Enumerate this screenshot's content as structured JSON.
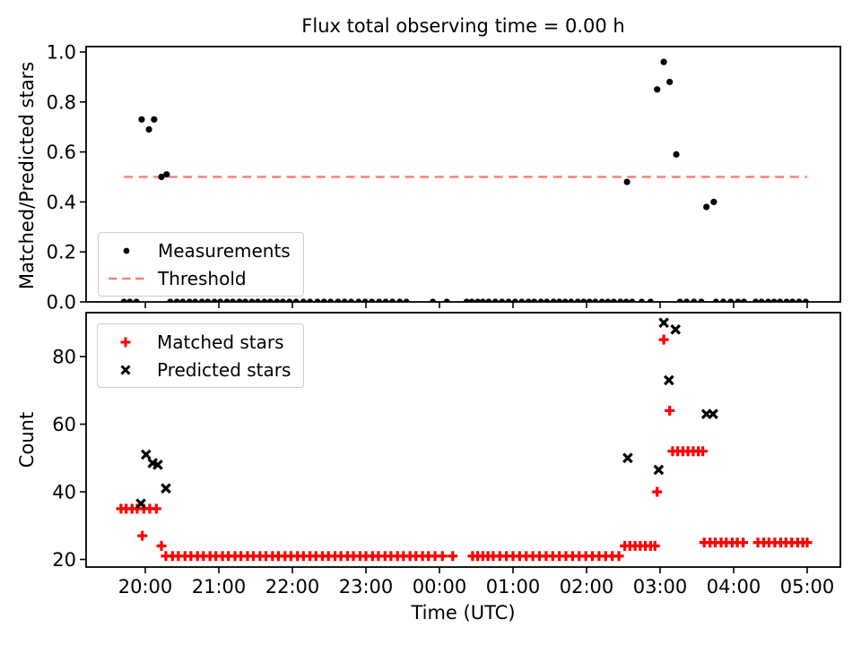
{
  "figure_title": "Flux total observing time = 0.00 h",
  "colors": {
    "measurements": "#000000",
    "threshold": "#ff7f7f",
    "matched": "#ff0000",
    "predicted": "#000000",
    "frame": "#000000",
    "legend_border": "#cccccc"
  },
  "x_unit_note": "decimal hours after 20:00 UTC",
  "chart_data": [
    {
      "type": "scatter",
      "title": "Flux total observing time = 0.00 h",
      "ylabel": "Matched/Predicted stars",
      "ylim": [
        0.0,
        1.02
      ],
      "yticks": [
        0.0,
        0.2,
        0.4,
        0.6,
        0.8,
        1.0
      ],
      "ytick_labels": [
        "0.0",
        "0.2",
        "0.4",
        "0.6",
        "0.8",
        "1.0"
      ],
      "xlim_hours": [
        -0.8,
        9.45
      ],
      "xticks_hours": [
        0,
        1,
        2,
        3,
        4,
        5,
        6,
        7,
        8,
        9
      ],
      "grid": false,
      "legend_position": "lower left",
      "legend": [
        {
          "label": "Measurements",
          "marker": "dot",
          "color": "#000000"
        },
        {
          "label": "Threshold",
          "marker": "dashed-line",
          "color": "#ff7f7f"
        }
      ],
      "threshold": {
        "value": 0.5,
        "t_start": -0.29,
        "t_end": 9.0,
        "color": "#ff7f7f"
      },
      "series": [
        {
          "name": "Measurements",
          "marker": "dot",
          "color": "#000000",
          "points": [
            [
              -0.05,
              0.73
            ],
            [
              0.05,
              0.69
            ],
            [
              0.12,
              0.73
            ],
            [
              0.22,
              0.5
            ],
            [
              0.29,
              0.51
            ],
            [
              6.55,
              0.48
            ],
            [
              6.96,
              0.85
            ],
            [
              7.05,
              0.96
            ],
            [
              7.13,
              0.88
            ],
            [
              7.22,
              0.59
            ],
            [
              7.63,
              0.38
            ],
            [
              7.73,
              0.4
            ],
            [
              -0.29,
              0
            ],
            [
              -0.21,
              0
            ],
            [
              -0.12,
              0
            ],
            [
              0.34,
              0
            ],
            [
              0.43,
              0
            ],
            [
              0.51,
              0
            ],
            [
              0.6,
              0
            ],
            [
              0.68,
              0
            ],
            [
              0.77,
              0
            ],
            [
              0.85,
              0
            ],
            [
              0.94,
              0
            ],
            [
              1.02,
              0
            ],
            [
              1.11,
              0
            ],
            [
              1.19,
              0
            ],
            [
              1.28,
              0
            ],
            [
              1.36,
              0
            ],
            [
              1.45,
              0
            ],
            [
              1.53,
              0
            ],
            [
              1.62,
              0
            ],
            [
              1.7,
              0
            ],
            [
              1.79,
              0
            ],
            [
              1.87,
              0
            ],
            [
              1.96,
              0
            ],
            [
              2.05,
              0
            ],
            [
              2.15,
              0
            ],
            [
              2.24,
              0
            ],
            [
              2.34,
              0
            ],
            [
              2.43,
              0
            ],
            [
              2.52,
              0
            ],
            [
              2.62,
              0
            ],
            [
              2.71,
              0
            ],
            [
              2.8,
              0
            ],
            [
              2.9,
              0
            ],
            [
              2.99,
              0
            ],
            [
              3.08,
              0
            ],
            [
              3.18,
              0
            ],
            [
              3.27,
              0
            ],
            [
              3.36,
              0
            ],
            [
              3.46,
              0
            ],
            [
              3.55,
              0
            ],
            [
              3.91,
              0
            ],
            [
              4.1,
              0
            ],
            [
              4.37,
              0
            ],
            [
              4.44,
              0
            ],
            [
              4.52,
              0
            ],
            [
              4.59,
              0
            ],
            [
              4.67,
              0
            ],
            [
              4.76,
              0
            ],
            [
              4.85,
              0
            ],
            [
              4.94,
              0
            ],
            [
              5.03,
              0
            ],
            [
              5.12,
              0
            ],
            [
              5.21,
              0
            ],
            [
              5.29,
              0
            ],
            [
              5.38,
              0
            ],
            [
              5.46,
              0
            ],
            [
              5.55,
              0
            ],
            [
              5.63,
              0
            ],
            [
              5.71,
              0
            ],
            [
              5.79,
              0
            ],
            [
              5.88,
              0
            ],
            [
              5.96,
              0
            ],
            [
              6.04,
              0
            ],
            [
              6.12,
              0
            ],
            [
              6.21,
              0
            ],
            [
              6.29,
              0
            ],
            [
              6.37,
              0
            ],
            [
              6.46,
              0
            ],
            [
              6.54,
              0
            ],
            [
              6.62,
              0
            ],
            [
              6.75,
              0
            ],
            [
              6.87,
              0
            ],
            [
              7.27,
              0
            ],
            [
              7.36,
              0
            ],
            [
              7.46,
              0
            ],
            [
              7.56,
              0
            ],
            [
              7.76,
              0
            ],
            [
              7.86,
              0
            ],
            [
              7.96,
              0
            ],
            [
              8.06,
              0
            ],
            [
              8.14,
              0
            ],
            [
              8.3,
              0
            ],
            [
              8.38,
              0
            ],
            [
              8.47,
              0
            ],
            [
              8.55,
              0
            ],
            [
              8.63,
              0
            ],
            [
              8.72,
              0
            ],
            [
              8.8,
              0
            ],
            [
              8.89,
              0
            ],
            [
              8.98,
              0
            ]
          ]
        }
      ]
    },
    {
      "type": "scatter",
      "xlabel": "Time (UTC)",
      "ylabel": "Count",
      "ylim": [
        15.5,
        92.3
      ],
      "yticks": [
        20,
        40,
        60,
        80
      ],
      "ytick_labels": [
        "20",
        "40",
        "60",
        "80"
      ],
      "xlim_hours": [
        -0.8,
        9.45
      ],
      "xticks_hours": [
        0,
        1,
        2,
        3,
        4,
        5,
        6,
        7,
        8,
        9
      ],
      "xtick_labels": [
        "20:00",
        "21:00",
        "22:00",
        "23:00",
        "00:00",
        "01:00",
        "02:00",
        "03:00",
        "04:00",
        "05:00"
      ],
      "grid": false,
      "legend_position": "upper left",
      "legend": [
        {
          "label": "Matched stars",
          "marker": "plus",
          "color": "#ff0000"
        },
        {
          "label": "Predicted stars",
          "marker": "cross",
          "color": "#000000"
        }
      ],
      "series": [
        {
          "name": "Matched stars",
          "marker": "plus",
          "color": "#ff0000",
          "points": [
            [
              -0.33,
              35
            ],
            [
              -0.26,
              35
            ],
            [
              -0.18,
              35
            ],
            [
              -0.11,
              35
            ],
            [
              -0.02,
              35
            ],
            [
              0.06,
              35
            ],
            [
              0.15,
              35
            ],
            [
              -0.04,
              27
            ],
            [
              0.22,
              24
            ],
            [
              0.28,
              21
            ],
            [
              0.37,
              21
            ],
            [
              0.45,
              21
            ],
            [
              0.54,
              21
            ],
            [
              0.62,
              21
            ],
            [
              0.71,
              21
            ],
            [
              0.79,
              21
            ],
            [
              0.88,
              21
            ],
            [
              0.96,
              21
            ],
            [
              1.05,
              21
            ],
            [
              1.13,
              21
            ],
            [
              1.22,
              21
            ],
            [
              1.3,
              21
            ],
            [
              1.39,
              21
            ],
            [
              1.47,
              21
            ],
            [
              1.56,
              21
            ],
            [
              1.64,
              21
            ],
            [
              1.73,
              21
            ],
            [
              1.81,
              21
            ],
            [
              1.9,
              21
            ],
            [
              1.98,
              21
            ],
            [
              2.07,
              21
            ],
            [
              2.15,
              21
            ],
            [
              2.24,
              21
            ],
            [
              2.32,
              21
            ],
            [
              2.41,
              21
            ],
            [
              2.49,
              21
            ],
            [
              2.58,
              21
            ],
            [
              2.66,
              21
            ],
            [
              2.75,
              21
            ],
            [
              2.83,
              21
            ],
            [
              2.92,
              21
            ],
            [
              3.0,
              21
            ],
            [
              3.09,
              21
            ],
            [
              3.17,
              21
            ],
            [
              3.26,
              21
            ],
            [
              3.34,
              21
            ],
            [
              3.43,
              21
            ],
            [
              3.51,
              21
            ],
            [
              3.6,
              21
            ],
            [
              3.68,
              21
            ],
            [
              3.77,
              21
            ],
            [
              3.85,
              21
            ],
            [
              3.94,
              21
            ],
            [
              4.04,
              21
            ],
            [
              4.18,
              21
            ],
            [
              4.45,
              21
            ],
            [
              4.52,
              21
            ],
            [
              4.59,
              21
            ],
            [
              4.66,
              21
            ],
            [
              4.73,
              21
            ],
            [
              4.82,
              21
            ],
            [
              4.91,
              21
            ],
            [
              5.0,
              21
            ],
            [
              5.09,
              21
            ],
            [
              5.18,
              21
            ],
            [
              5.27,
              21
            ],
            [
              5.36,
              21
            ],
            [
              5.45,
              21
            ],
            [
              5.54,
              21
            ],
            [
              5.63,
              21
            ],
            [
              5.72,
              21
            ],
            [
              5.81,
              21
            ],
            [
              5.9,
              21
            ],
            [
              5.99,
              21
            ],
            [
              6.08,
              21
            ],
            [
              6.17,
              21
            ],
            [
              6.26,
              21
            ],
            [
              6.35,
              21
            ],
            [
              6.44,
              21
            ],
            [
              6.52,
              24
            ],
            [
              6.59,
              24
            ],
            [
              6.66,
              24
            ],
            [
              6.73,
              24
            ],
            [
              6.8,
              24
            ],
            [
              6.87,
              24
            ],
            [
              6.93,
              24
            ],
            [
              6.96,
              40
            ],
            [
              7.05,
              85
            ],
            [
              7.13,
              64
            ],
            [
              7.17,
              52
            ],
            [
              7.24,
              52
            ],
            [
              7.31,
              52
            ],
            [
              7.38,
              52
            ],
            [
              7.45,
              52
            ],
            [
              7.52,
              52
            ],
            [
              7.58,
              52
            ],
            [
              7.6,
              25
            ],
            [
              7.68,
              25
            ],
            [
              7.75,
              25
            ],
            [
              7.83,
              25
            ],
            [
              7.9,
              25
            ],
            [
              7.98,
              25
            ],
            [
              8.05,
              25
            ],
            [
              8.13,
              25
            ],
            [
              8.33,
              25
            ],
            [
              8.41,
              25
            ],
            [
              8.48,
              25
            ],
            [
              8.56,
              25
            ],
            [
              8.64,
              25
            ],
            [
              8.71,
              25
            ],
            [
              8.79,
              25
            ],
            [
              8.87,
              25
            ],
            [
              8.94,
              25
            ],
            [
              9.0,
              25
            ]
          ]
        },
        {
          "name": "Predicted stars",
          "marker": "cross",
          "color": "#000000",
          "points": [
            [
              -0.06,
              36.5
            ],
            [
              0.01,
              51
            ],
            [
              0.1,
              48.5
            ],
            [
              0.17,
              48
            ],
            [
              0.28,
              41
            ],
            [
              6.56,
              50
            ],
            [
              6.98,
              46.5
            ],
            [
              7.05,
              90
            ],
            [
              7.12,
              73
            ],
            [
              7.21,
              88
            ],
            [
              7.63,
              63
            ],
            [
              7.72,
              63
            ]
          ]
        }
      ]
    }
  ]
}
